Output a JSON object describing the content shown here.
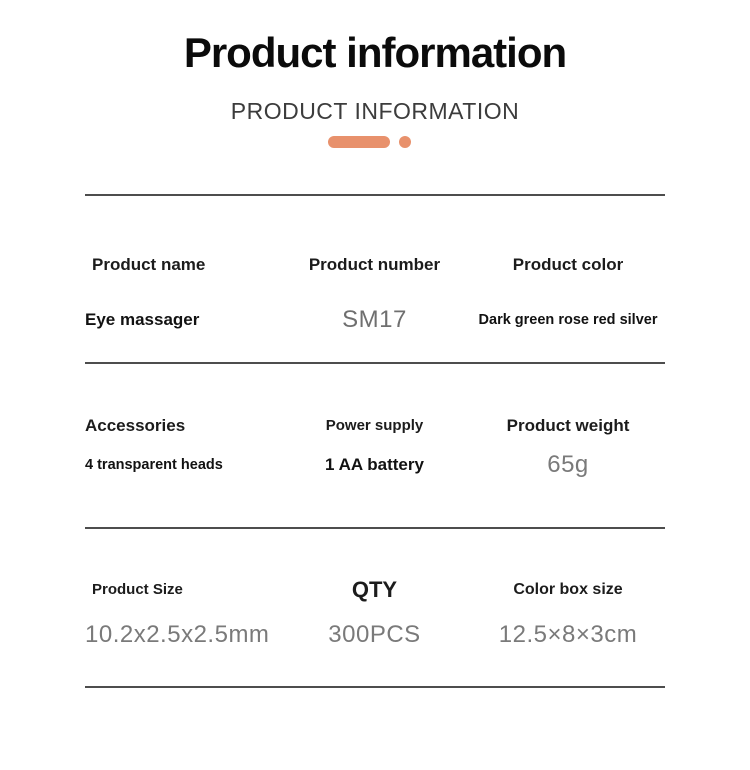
{
  "page": {
    "title": "Product information",
    "subtitle": "PRODUCT INFORMATION",
    "accent_color": "#e8916c",
    "divider_color": "#4d4d4d"
  },
  "table": {
    "rows": [
      {
        "cells": [
          {
            "header": "Product name",
            "value": "Eye massager"
          },
          {
            "header": "Product number",
            "value": "SM17"
          },
          {
            "header": "Product color",
            "value": "Dark green rose red silver"
          }
        ]
      },
      {
        "cells": [
          {
            "header": "Accessories",
            "value": "4 transparent heads"
          },
          {
            "header": "Power supply",
            "value": "1 AA battery"
          },
          {
            "header": "Product weight",
            "value": "65g"
          }
        ]
      },
      {
        "cells": [
          {
            "header": "Product Size",
            "value": "10.2x2.5x2.5mm"
          },
          {
            "header": "QTY",
            "value": "300PCS"
          },
          {
            "header": "Color box size",
            "value": "12.5×8×3cm"
          }
        ]
      }
    ]
  }
}
